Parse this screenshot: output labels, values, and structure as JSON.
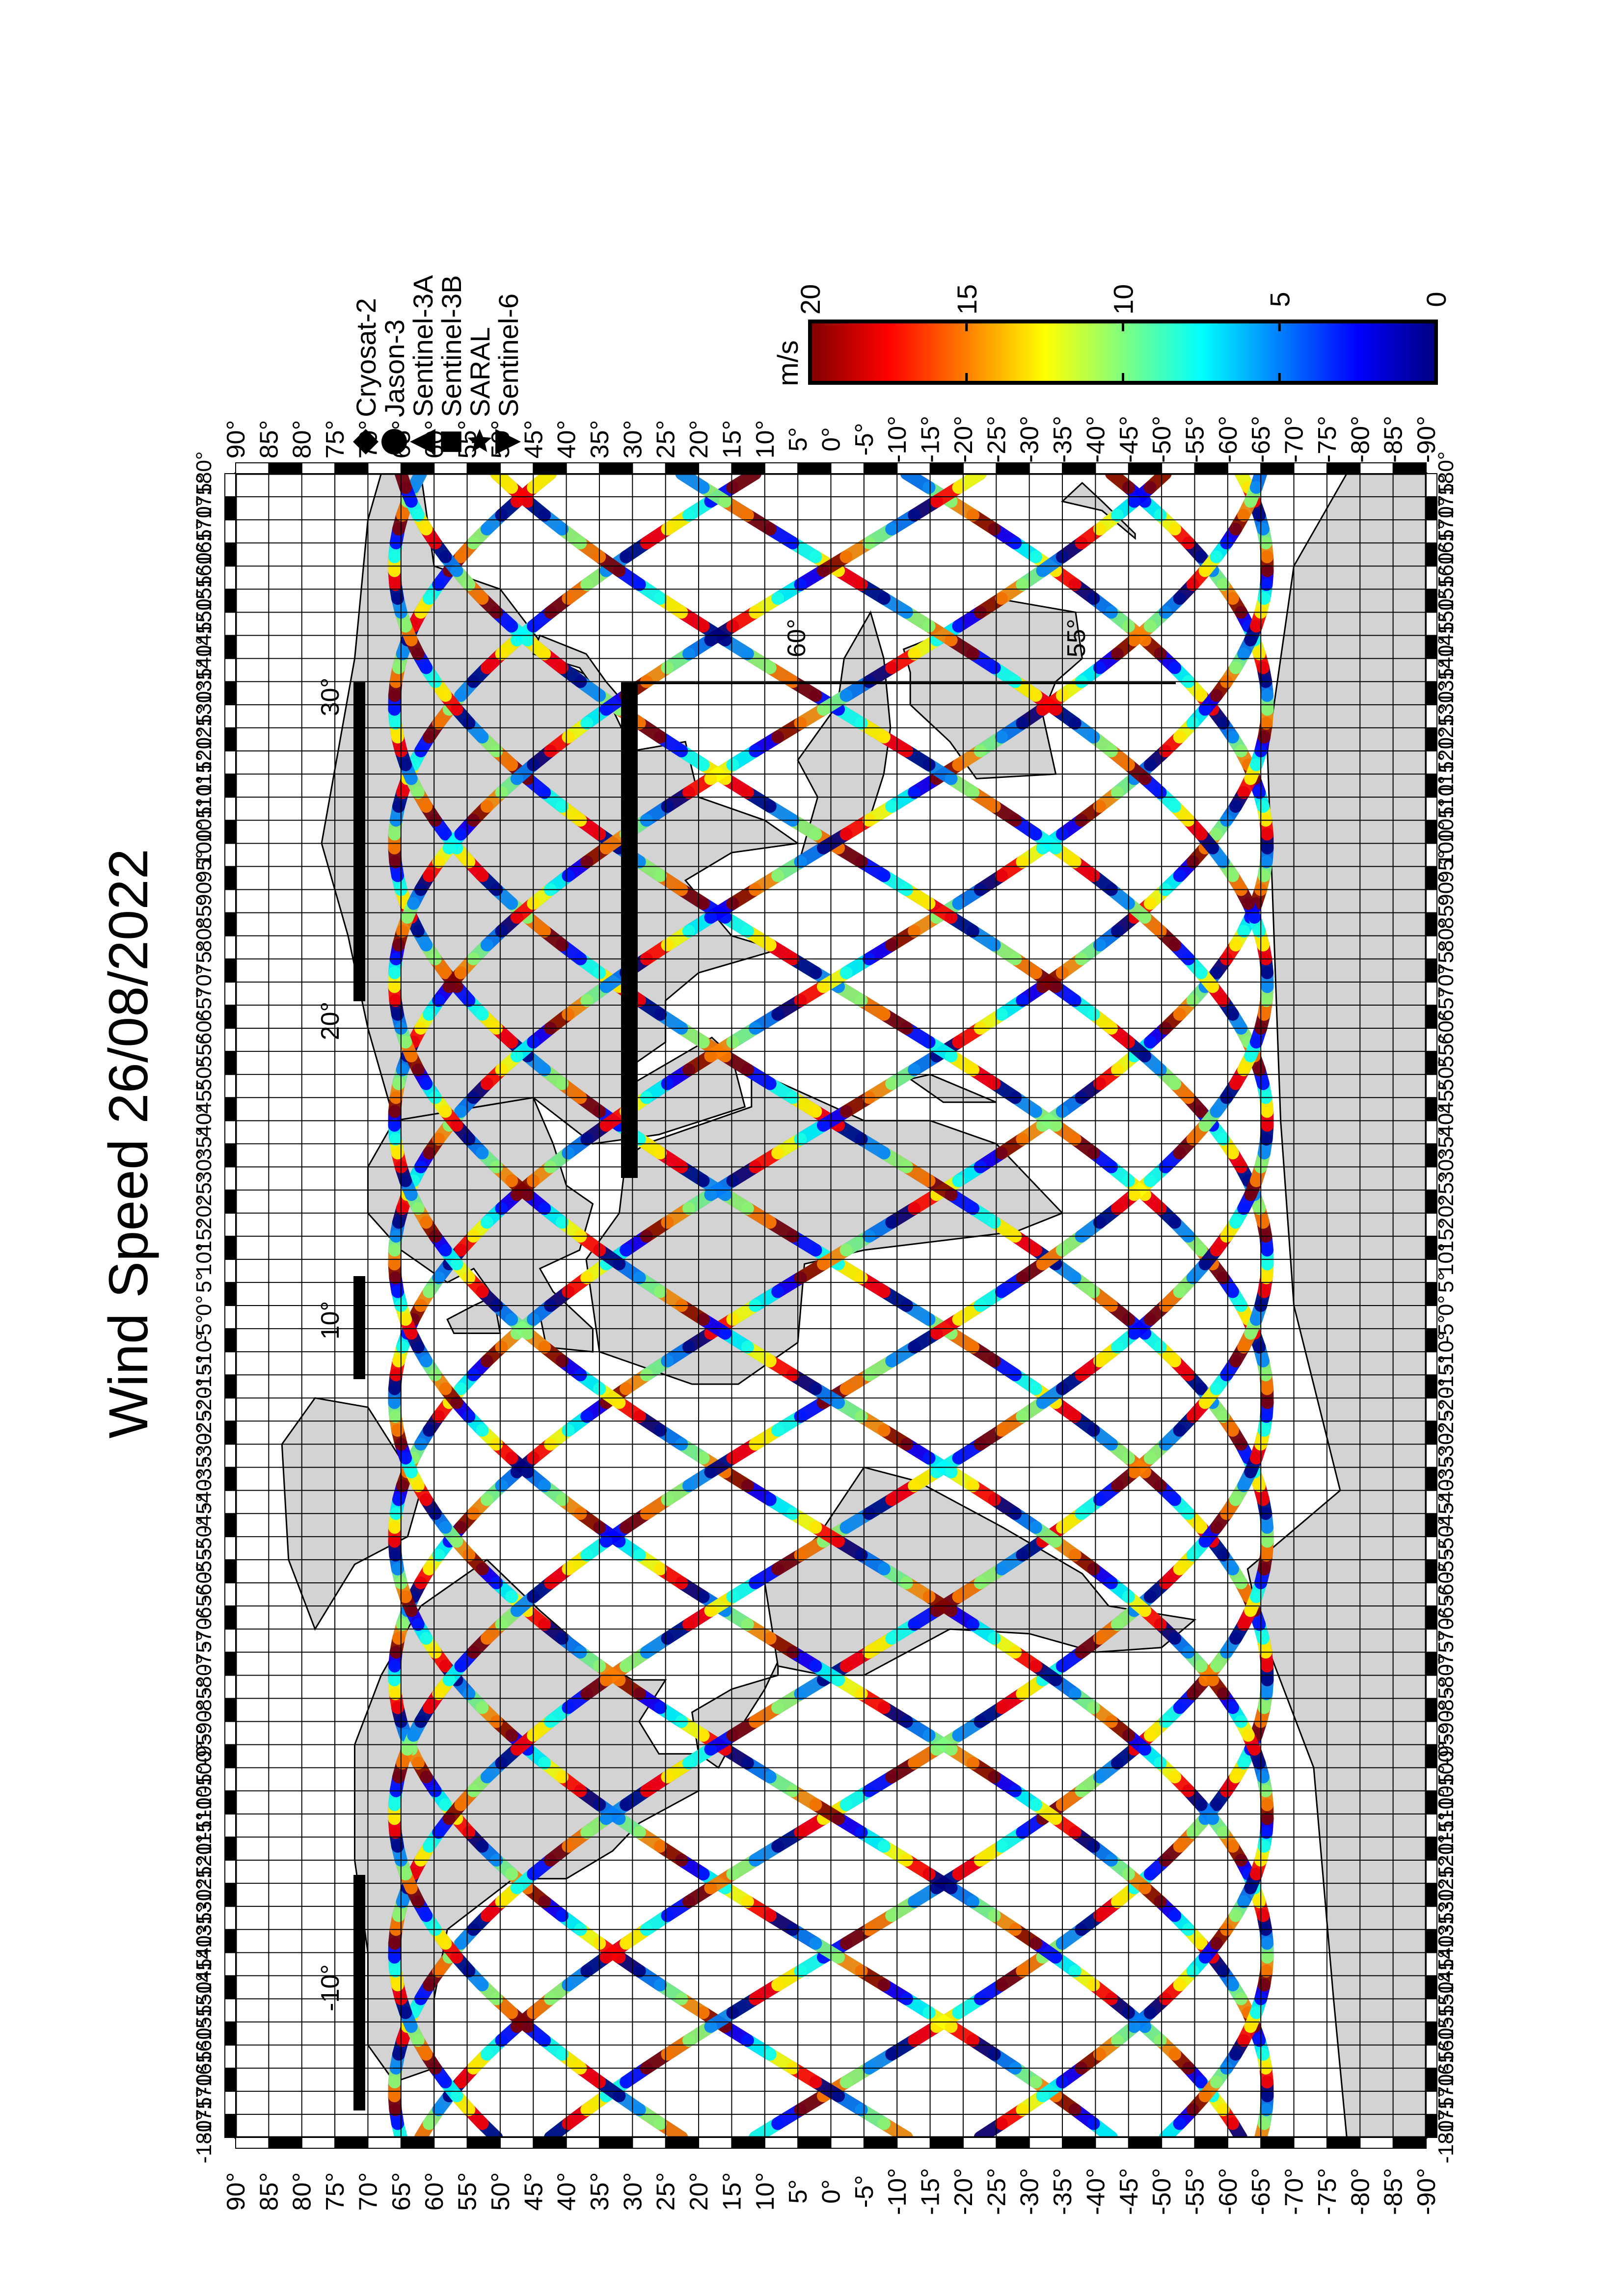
{
  "title": "Wind Speed 26/08/2022",
  "map": {
    "lon_range": [
      -180,
      180
    ],
    "lat_range": [
      -90,
      90
    ],
    "lon_step": 5,
    "lat_step": 5,
    "land_color": "#d3d3d3",
    "ocean_color": "#ffffff",
    "inset_labels": [
      "-10°",
      "10°",
      "20°",
      "30°",
      "60°",
      "55°"
    ],
    "lon_tick_labels": [
      "-180°",
      "-175°",
      "-170°",
      "-165°",
      "-160°",
      "-155°",
      "-150°",
      "-145°",
      "-140°",
      "-135°",
      "-130°",
      "-125°",
      "-120°",
      "-115°",
      "-110°",
      "-105°",
      "-100°",
      "-95°",
      "-90°",
      "-85°",
      "-80°",
      "-75°",
      "-70°",
      "-65°",
      "-60°",
      "-55°",
      "-50°",
      "-45°",
      "-40°",
      "-35°",
      "-30°",
      "-25°",
      "-20°",
      "-15°",
      "-10°",
      "-5°",
      "0°",
      "5°",
      "10°",
      "15°",
      "20°",
      "25°",
      "30°",
      "35°",
      "40°",
      "45°",
      "50°",
      "55°",
      "60°",
      "65°",
      "70°",
      "75°",
      "80°",
      "85°",
      "90°",
      "95°",
      "100°",
      "105°",
      "110°",
      "115°",
      "120°",
      "125°",
      "130°",
      "135°",
      "140°",
      "145°",
      "150°",
      "155°",
      "160°",
      "165°",
      "170°",
      "175°",
      "180°"
    ],
    "lat_tick_labels": [
      "90°",
      "85°",
      "80°",
      "75°",
      "70°",
      "65°",
      "60°",
      "55°",
      "50°",
      "45°",
      "40°",
      "35°",
      "30°",
      "25°",
      "20°",
      "15°",
      "10°",
      "5°",
      "0°",
      "-5°",
      "-10°",
      "-15°",
      "-20°",
      "-25°",
      "-30°",
      "-35°",
      "-40°",
      "-45°",
      "-50°",
      "-55°",
      "-60°",
      "-65°",
      "-70°",
      "-75°",
      "-80°",
      "-85°",
      "-90°"
    ]
  },
  "legend": {
    "items": [
      {
        "label": "Cryosat-2",
        "symbol": "diamond"
      },
      {
        "label": "Jason-3",
        "symbol": "circle"
      },
      {
        "label": "Sentinel-3A",
        "symbol": "triangle-up"
      },
      {
        "label": "Sentinel-3B",
        "symbol": "square"
      },
      {
        "label": "SARAL",
        "symbol": "star"
      },
      {
        "label": "Sentinel-6",
        "symbol": "triangle-down"
      }
    ]
  },
  "colorbar": {
    "unit_label": "m/s",
    "min": 0,
    "max": 20,
    "ticks": [
      "0",
      "5",
      "10",
      "15",
      "20"
    ],
    "colors": [
      "#00007f",
      "#0000ff",
      "#007fff",
      "#00ffff",
      "#7fff7f",
      "#ffff00",
      "#ff7f00",
      "#ff0000",
      "#7f0000"
    ]
  },
  "chart_data": {
    "type": "map",
    "title": "Wind Speed 26/08/2022",
    "value_label": "m/s",
    "value_range": [
      0,
      20
    ],
    "series": [
      {
        "name": "Cryosat-2"
      },
      {
        "name": "Jason-3"
      },
      {
        "name": "Sentinel-3A"
      },
      {
        "name": "Sentinel-3B"
      },
      {
        "name": "SARAL"
      },
      {
        "name": "Sentinel-6"
      }
    ]
  }
}
